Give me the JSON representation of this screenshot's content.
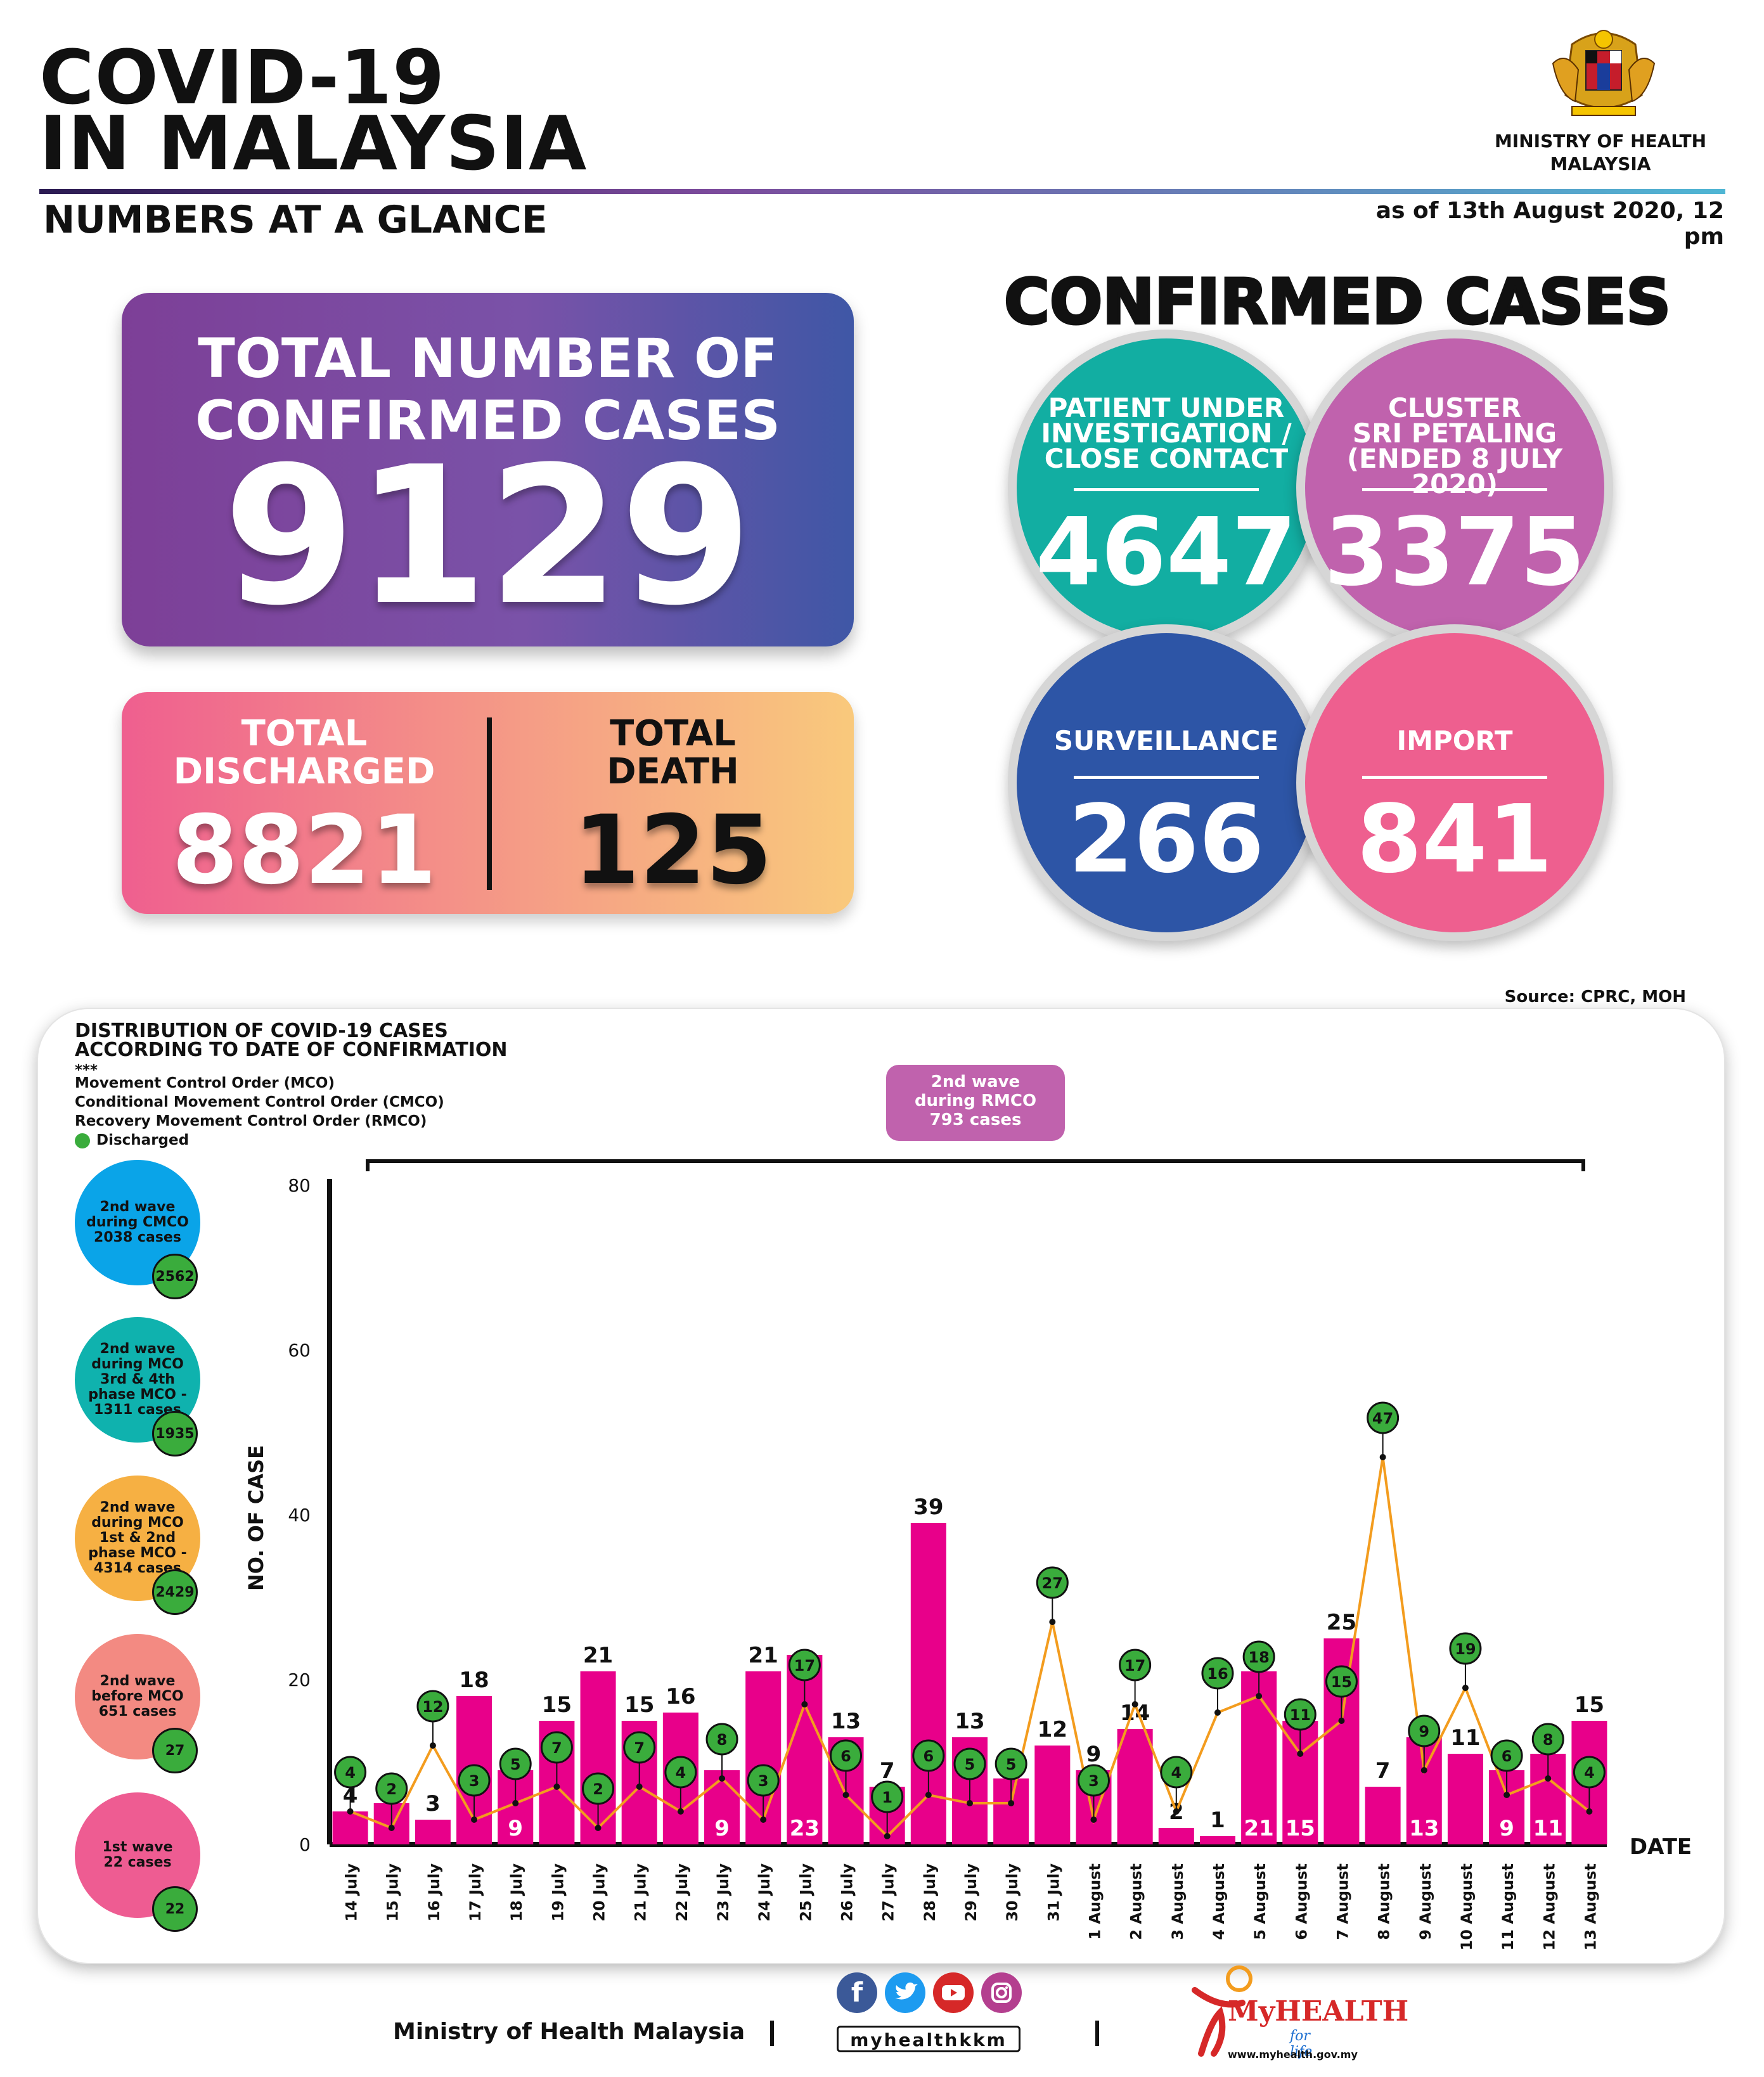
{
  "header": {
    "title_line1": "COVID-19",
    "title_line2": "IN MALAYSIA",
    "subtitle": "NUMBERS AT A GLANCE",
    "ministry_line1": "MINISTRY OF HEALTH",
    "ministry_line2": "MALAYSIA",
    "as_of": "as of 13th August 2020, 12 pm"
  },
  "totals": {
    "confirmed_label_line1": "TOTAL NUMBER OF",
    "confirmed_label_line2": "CONFIRMED CASES",
    "confirmed_value": "9129",
    "discharged_label_line1": "TOTAL",
    "discharged_label_line2": "DISCHARGED",
    "discharged_value": "8821",
    "death_label_line1": "TOTAL",
    "death_label_line2": "DEATH",
    "death_value": "125"
  },
  "confirmed_cases": {
    "title": "CONFIRMED CASES",
    "pui": {
      "label_line1": "PATIENT UNDER",
      "label_line2": "INVESTIGATION /",
      "label_line3": "CLOSE CONTACT",
      "value": "4647",
      "color": "#12aea2"
    },
    "cluster": {
      "label_line1": "CLUSTER",
      "label_line2": "SRI PETALING",
      "label_line3": "(ENDED 8 JULY 2020)",
      "value": "3375",
      "color": "#c062ad"
    },
    "surveillance": {
      "label": "SURVEILLANCE",
      "value": "266",
      "color": "#2d55a6"
    },
    "import": {
      "label": "IMPORT",
      "value": "841",
      "color": "#ee5f8f"
    }
  },
  "source": "Source: CPRC, MOH",
  "chart_panel": {
    "title_line1": "DISTRIBUTION OF COVID-19 CASES",
    "title_line2": "ACCORDING TO DATE OF CONFIRMATION",
    "stars": "***",
    "abbr1": "Movement Control Order (MCO)",
    "abbr2": "Conditional Movement Control Order (CMCO)",
    "abbr3": "Recovery Movement Control Order (RMCO)",
    "discharged_legend": "Discharged",
    "rmco_line1": "2nd wave",
    "rmco_line2": "during RMCO",
    "rmco_line3": "793 cases",
    "waves": [
      {
        "line1": "2nd wave",
        "line2": "during CMCO",
        "line3": "2038 cases",
        "line4": "",
        "discharged": "2562",
        "color": "#0aa4e8"
      },
      {
        "line1": "2nd wave",
        "line2": "during MCO",
        "line3": "3rd & 4th",
        "line4": "phase MCO - 1311 cases",
        "discharged": "1935",
        "color": "#0fb2ae"
      },
      {
        "line1": "2nd wave",
        "line2": "during MCO",
        "line3": "1st & 2nd",
        "line4": "phase MCO - 4314 cases",
        "discharged": "2429",
        "color": "#f6b043"
      },
      {
        "line1": "2nd wave",
        "line2": "before MCO",
        "line3": "651 cases",
        "line4": "",
        "discharged": "27",
        "color": "#f38a82"
      },
      {
        "line1": "1st wave",
        "line2": "22 cases",
        "line3": "",
        "line4": "",
        "discharged": "22",
        "color": "#ee5c92"
      }
    ]
  },
  "chart_data": {
    "type": "bar",
    "ylabel": "NO. OF CASE",
    "xlabel": "DATE",
    "ylim": [
      0,
      80
    ],
    "yticks": [
      0,
      20,
      40,
      60,
      80
    ],
    "categories": [
      "14 July",
      "15 July",
      "16 July",
      "17 July",
      "18 July",
      "19 July",
      "20 July",
      "21 July",
      "22 July",
      "23 July",
      "24 July",
      "25 July",
      "26 July",
      "27 July",
      "28 July",
      "29 July",
      "30 July",
      "31 July",
      "1 August",
      "2 August",
      "3 August",
      "4 August",
      "5 August",
      "6 August",
      "7 August",
      "8 August",
      "9 August",
      "10 August",
      "11 August",
      "12 August",
      "13 August"
    ],
    "series": [
      {
        "name": "",
        "type": "bar",
        "color": "#e8008a",
        "values": [
          4,
          5,
          3,
          18,
          9,
          15,
          21,
          15,
          16,
          9,
          21,
          23,
          13,
          7,
          39,
          13,
          8,
          12,
          9,
          14,
          2,
          1,
          21,
          15,
          25,
          7,
          13,
          11,
          9,
          11,
          15
        ]
      },
      {
        "name": "Discharged",
        "type": "line",
        "color": "#f39c1e",
        "values": [
          4,
          2,
          12,
          3,
          5,
          7,
          2,
          7,
          4,
          8,
          3,
          17,
          6,
          1,
          6,
          5,
          5,
          27,
          3,
          17,
          4,
          16,
          18,
          11,
          15,
          47,
          9,
          19,
          6,
          8,
          4
        ]
      }
    ]
  },
  "footer": {
    "ministry": "Ministry of Health Malaysia",
    "handle": "myhealthkkm",
    "myhealth_brand": "MyHEALTH",
    "myhealth_tag": "for life",
    "url": "www.myhealth.gov.my"
  },
  "icons": [
    "facebook-icon",
    "twitter-icon",
    "youtube-icon",
    "instagram-icon",
    "malaysia-crest",
    "myhealth-logo"
  ]
}
